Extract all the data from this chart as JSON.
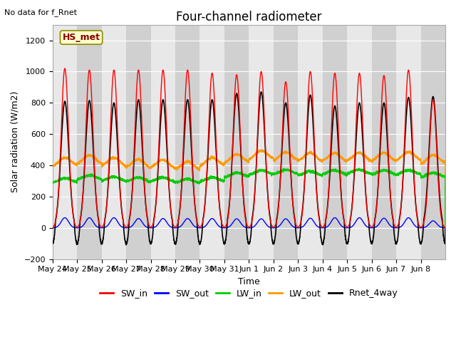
{
  "title": "Four-channel radiometer",
  "top_left_text": "No data for f_Rnet",
  "station_label": "HS_met",
  "xlabel": "Time",
  "ylabel": "Solar radiation (W/m2)",
  "ylim": [
    -200,
    1300
  ],
  "yticks": [
    -200,
    0,
    200,
    400,
    600,
    800,
    1000,
    1200
  ],
  "background_color": "#ffffff",
  "plot_bg_color": "#d8d8d8",
  "grid_color": "#c0c0c0",
  "band_light": "#e8e8e8",
  "band_dark": "#d0d0d0",
  "legend": [
    "SW_in",
    "SW_out",
    "LW_in",
    "LW_out",
    "Rnet_4way"
  ],
  "legend_colors": [
    "#ff0000",
    "#0000ff",
    "#00cc00",
    "#ff9900",
    "#000000"
  ],
  "n_days": 16,
  "day_labels": [
    "May 24",
    "May 25",
    "May 26",
    "May 27",
    "May 28",
    "May 29",
    "May 30",
    "May 31",
    "Jun 1",
    "Jun 2",
    "Jun 3",
    "Jun 4",
    "Jun 5",
    "Jun 6",
    "Jun 7",
    "Jun 8"
  ],
  "SW_in_peaks": [
    1020,
    1010,
    1010,
    1010,
    1010,
    1010,
    990,
    980,
    1000,
    935,
    1000,
    990,
    990,
    975,
    1010,
    820
  ],
  "Rnet_peaks": [
    810,
    815,
    800,
    820,
    820,
    820,
    820,
    860,
    870,
    800,
    850,
    780,
    800,
    800,
    835,
    840
  ],
  "SW_out_peaks": [
    65,
    65,
    65,
    60,
    60,
    60,
    60,
    58,
    58,
    58,
    62,
    65,
    65,
    62,
    65,
    45
  ],
  "LW_in_base": [
    285,
    300,
    290,
    290,
    295,
    290,
    300,
    325,
    335,
    335,
    325,
    335,
    345,
    345,
    345,
    325
  ],
  "LW_out_base": [
    385,
    395,
    380,
    375,
    380,
    375,
    400,
    415,
    430,
    415,
    410,
    415,
    425,
    430,
    435,
    410
  ],
  "Rnet_night": -100,
  "title_fontsize": 12,
  "label_fontsize": 9,
  "tick_fontsize": 8,
  "legend_fontsize": 9
}
